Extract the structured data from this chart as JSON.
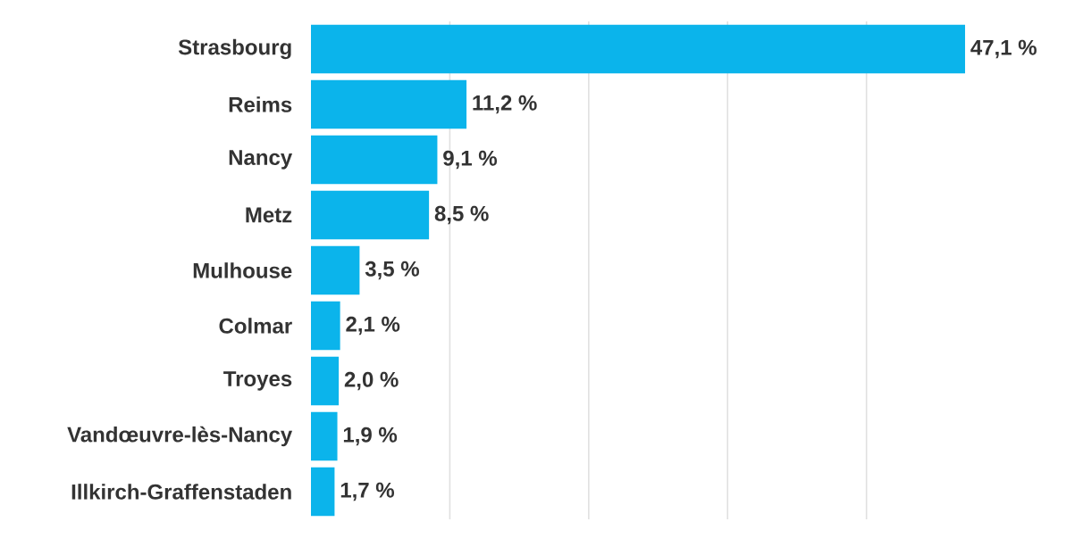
{
  "chart_data": {
    "type": "bar",
    "orientation": "horizontal",
    "categories": [
      "Strasbourg",
      "Reims",
      "Nancy",
      "Metz",
      "Mulhouse",
      "Colmar",
      "Troyes",
      "Vandœuvre-lès-Nancy",
      "Illkirch-Graffenstaden"
    ],
    "values": [
      47.1,
      11.2,
      9.1,
      8.5,
      3.5,
      2.1,
      2.0,
      1.9,
      1.7
    ],
    "value_labels": [
      "47,1 %",
      "11,2 %",
      "9,1 %",
      "8,5 %",
      "3,5 %",
      "2,1 %",
      "2,0 %",
      "1,9 %",
      "1,7 %"
    ],
    "color": "#0bb4eb",
    "xticks": [
      {
        "value": 10,
        "label": null
      },
      {
        "value": 20,
        "label": null
      },
      {
        "value": 30,
        "label": null
      },
      {
        "value": 40,
        "label": null
      }
    ],
    "grid": "x",
    "tick_labels": "y"
  }
}
